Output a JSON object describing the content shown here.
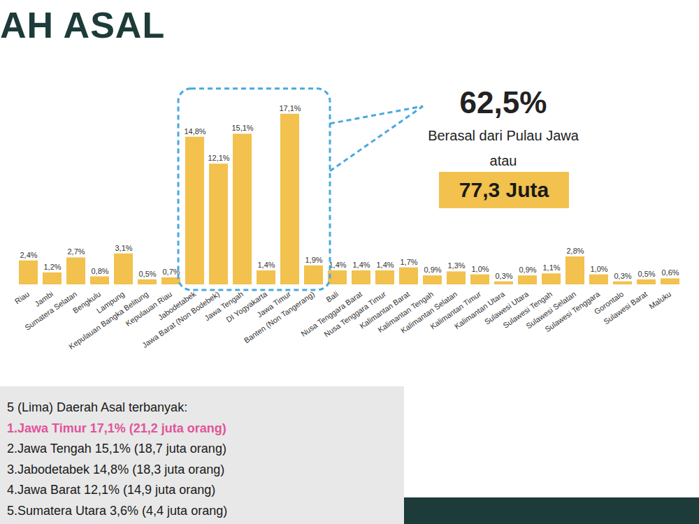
{
  "chart_data": {
    "type": "bar",
    "title": "AH ASAL",
    "categories": [
      "Riau",
      "Jambi",
      "Sumatera Selatan",
      "Bengkulu",
      "Lampung",
      "Kepulauan Bangka Belitung",
      "Kepulauan Riau",
      "Jabodetabek",
      "Jawa Barat (Non Bodebek)",
      "Jawa Tengah",
      "DI Yogyakarta",
      "Jawa Timur",
      "Banten (Non Tangerang)",
      "Bali",
      "Nusa Tenggara Barat",
      "Nusa Tenggara Timur",
      "Kalimantan Barat",
      "Kalimantan Tengah",
      "Kalimantan Selatan",
      "Kalimantan Timur",
      "Kalimantan Utara",
      "Sulawesi Utara",
      "Sulawesi Tengah",
      "Sulawesi Selatan",
      "Sulawesi Tenggara",
      "Gorontalo",
      "Sulawesi Barat",
      "Maluku"
    ],
    "values": [
      2.4,
      1.2,
      2.7,
      0.8,
      3.1,
      0.5,
      0.7,
      14.8,
      12.1,
      15.1,
      1.4,
      17.1,
      1.9,
      1.4,
      1.4,
      1.4,
      1.7,
      0.9,
      1.3,
      1.0,
      0.3,
      0.9,
      1.1,
      2.8,
      1.0,
      0.3,
      0.5,
      0.6
    ],
    "value_labels": [
      "2,4%",
      "1,2%",
      "2,7%",
      "0,8%",
      "3,1%",
      "0,5%",
      "0,7%",
      "14,8%",
      "12,1%",
      "15,1%",
      "1,4%",
      "17,1%",
      "1,9%",
      "1,4%",
      "1,4%",
      "1,4%",
      "1,7%",
      "0,9%",
      "1,3%",
      "1,0%",
      "0,3%",
      "0,9%",
      "1,1%",
      "2,8%",
      "1,0%",
      "0,3%",
      "0,5%",
      "0,6%"
    ],
    "color": "#f2c14e",
    "ylim": [
      0,
      18
    ],
    "data_labels": true,
    "tick_labels": "x",
    "annotations": [
      "62,5%",
      "Berasal dari Pulau Jawa",
      "atau",
      "77,3 Juta"
    ],
    "text_box": {
      "heading": "5 (Lima) Daerah Asal terbanyak:",
      "items": [
        "1.Jawa Timur 17,1% (21,2 juta orang)",
        "2.Jawa Tengah 15,1% (18,7 juta orang)",
        "3.Jabodetabek 14,8% (18,3 juta orang)",
        "4.Jawa Barat 12,1% (14,9 juta orang)",
        "5.Sumatera Utara 3,6% (4,4 juta orang)"
      ]
    }
  }
}
